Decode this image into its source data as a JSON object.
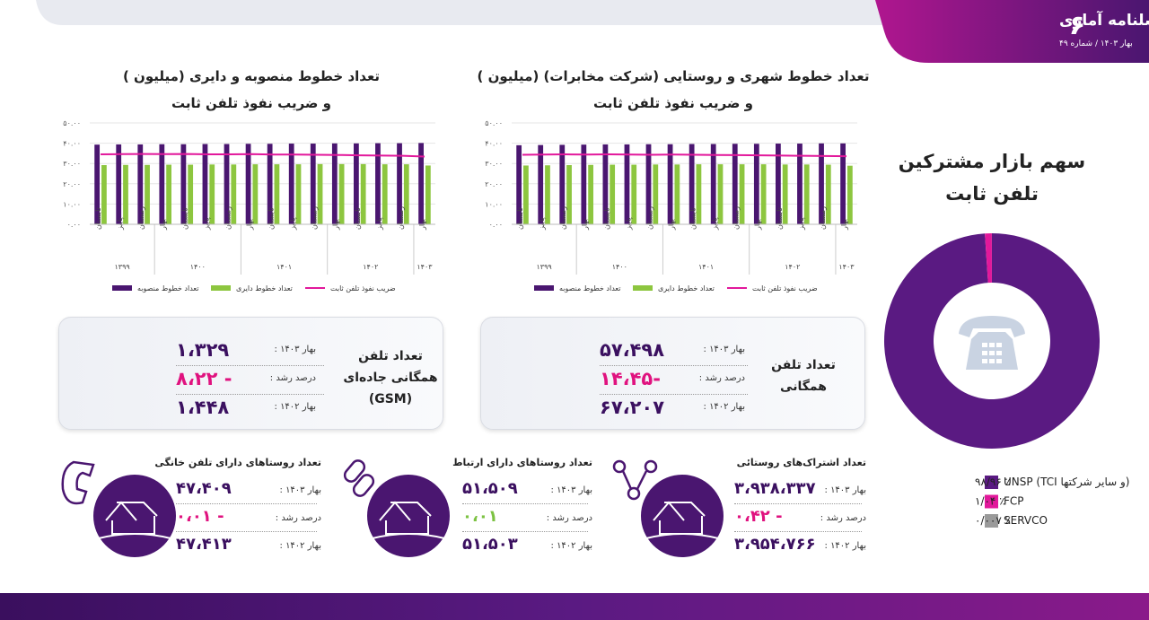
{
  "header": {
    "title": "فصلنامه آماری",
    "subtitle": "بهار ۱۴۰۳ / شماره ۴۹",
    "page_number": "۶"
  },
  "chart_data": [
    {
      "type": "bar",
      "title": "تعداد خطوط منصوبه و دایری (میلیون )",
      "subtitle": "و ضریب نفوذ تلفن ثابت",
      "categories": [
        "تابستان",
        "پاییز",
        "زمستان",
        "بهار",
        "تابستان",
        "پاییز",
        "زمستان",
        "بهار",
        "تابستان",
        "پاییز",
        "زمستان",
        "بهار",
        "تابستان",
        "پاییز",
        "زمستان",
        "بهار"
      ],
      "category_years": [
        "۱۳۹۹",
        "۱۳۹۹",
        "۱۳۹۹",
        "۱۴۰۰",
        "۱۴۰۰",
        "۱۴۰۰",
        "۱۴۰۰",
        "۱۴۰۱",
        "۱۴۰۱",
        "۱۴۰۱",
        "۱۴۰۱",
        "۱۴۰۲",
        "۱۴۰۲",
        "۱۴۰۲",
        "۱۴۰۲",
        "۱۴۰۳"
      ],
      "series": [
        {
          "name": "تعداد خطوط منصوبه",
          "type": "bar",
          "color": "#4a1670",
          "values": [
            39.3,
            39.4,
            39.4,
            39.5,
            39.5,
            39.6,
            39.6,
            39.7,
            39.7,
            39.8,
            39.8,
            39.9,
            39.9,
            40.0,
            40.0,
            40.1
          ]
        },
        {
          "name": "تعداد خطوط دایری",
          "type": "bar",
          "color": "#8dc63f",
          "values": [
            29.2,
            29.3,
            29.3,
            29.4,
            29.4,
            29.5,
            29.5,
            29.6,
            29.6,
            29.6,
            29.7,
            29.7,
            29.7,
            29.6,
            29.6,
            29.0
          ]
        },
        {
          "name": "ضریب نفوذ تلفن ثابت",
          "type": "line",
          "color": "#e2189b",
          "values": [
            34.5,
            34.6,
            34.7,
            34.6,
            34.7,
            34.5,
            34.5,
            34.6,
            34.4,
            34.4,
            34.3,
            34.2,
            34.0,
            33.9,
            33.8,
            33.4
          ]
        }
      ],
      "ylim": [
        0,
        50
      ],
      "yticks": [
        {
          "value": 0,
          "label": "۰.۰۰"
        },
        {
          "value": 10,
          "label": "۱۰.۰۰"
        },
        {
          "value": 20,
          "label": "۲۰.۰۰"
        },
        {
          "value": 30,
          "label": "۳۰.۰۰"
        },
        {
          "value": 40,
          "label": "۴۰.۰۰"
        },
        {
          "value": 50,
          "label": "۵۰.۰۰"
        }
      ],
      "grid": true
    },
    {
      "type": "bar",
      "title": "تعداد خطوط شهری و روستایی (شرکت مخابرات) (میلیون )",
      "subtitle": "و ضریب نفوذ تلفن ثابت",
      "categories": [
        "تابستان",
        "پاییز",
        "زمستان",
        "بهار",
        "تابستان",
        "پاییز",
        "زمستان",
        "بهار",
        "تابستان",
        "پاییز",
        "زمستان",
        "بهار",
        "تابستان",
        "پاییز",
        "زمستان",
        "بهار"
      ],
      "category_years": [
        "۱۳۹۹",
        "۱۳۹۹",
        "۱۳۹۹",
        "۱۴۰۰",
        "۱۴۰۰",
        "۱۴۰۰",
        "۱۴۰۰",
        "۱۴۰۱",
        "۱۴۰۱",
        "۱۴۰۱",
        "۱۴۰۱",
        "۱۴۰۲",
        "۱۴۰۲",
        "۱۴۰۲",
        "۱۴۰۲",
        "۱۴۰۳"
      ],
      "series": [
        {
          "name": "تعداد خطوط منصوبه",
          "type": "bar",
          "color": "#4a1670",
          "values": [
            39.0,
            39.1,
            39.2,
            39.3,
            39.4,
            39.4,
            39.5,
            39.5,
            39.6,
            39.6,
            39.7,
            39.7,
            39.8,
            39.8,
            39.9,
            39.9
          ]
        },
        {
          "name": "تعداد خطوط دایری",
          "type": "bar",
          "color": "#8dc63f",
          "values": [
            29.0,
            29.1,
            29.2,
            29.3,
            29.4,
            29.4,
            29.5,
            29.5,
            29.6,
            29.6,
            29.6,
            29.6,
            29.5,
            29.5,
            29.4,
            28.9
          ]
        },
        {
          "name": "ضریب نفوذ تلفن ثابت",
          "type": "line",
          "color": "#e2189b",
          "values": [
            34.3,
            34.4,
            34.5,
            34.4,
            34.5,
            34.4,
            34.3,
            34.4,
            34.3,
            34.2,
            34.1,
            34.0,
            33.9,
            33.8,
            33.7,
            33.6
          ]
        }
      ],
      "ylim": [
        0,
        50
      ],
      "yticks": [
        {
          "value": 0,
          "label": "۰.۰۰"
        },
        {
          "value": 10,
          "label": "۱۰.۰۰"
        },
        {
          "value": 20,
          "label": "۲۰.۰۰"
        },
        {
          "value": 30,
          "label": "۳۰.۰۰"
        },
        {
          "value": 40,
          "label": "۴۰.۰۰"
        },
        {
          "value": 50,
          "label": "۵۰.۰۰"
        }
      ],
      "grid": true
    },
    {
      "type": "donut",
      "title": "سهم بازار مشترکین",
      "subtitle": "تلفن ثابت",
      "categories": [
        "UNSP (TCI و سایر شرکتها)",
        "FCP",
        "SERVCO"
      ],
      "values": [
        98.96,
        1.04,
        0.007
      ],
      "value_labels": [
        "٪ ۹۸/۹۶",
        "٪ ۱/۰۴",
        "٪ ۰/۰۰۷"
      ],
      "colors": [
        "#5a1a82",
        "#e2189b",
        "#9a9a9a"
      ]
    }
  ],
  "cards": [
    {
      "title": "تعداد تلفن همگانی",
      "rows": [
        {
          "label": "بهار ۱۴۰۳ :",
          "value": "۵۷،۴۹۸"
        },
        {
          "label": "درصد رشد :",
          "value": "-۱۴،۴۵",
          "color": "#e0127f"
        },
        {
          "label": "بهار ۱۴۰۲ :",
          "value": "۶۷،۲۰۷"
        }
      ]
    },
    {
      "title": "تعداد تلفن همگانی جاده‌ای (GSM)",
      "rows": [
        {
          "label": "بهار ۱۴۰۳ :",
          "value": "۱،۳۲۹"
        },
        {
          "label": "درصد رشد :",
          "value": "- ۸،۲۲",
          "color": "#e0127f"
        },
        {
          "label": "بهار ۱۴۰۲ :",
          "value": "۱،۴۴۸"
        }
      ]
    }
  ],
  "villages": [
    {
      "title": "تعداد اشتراک‌های روستائی",
      "rows": [
        {
          "label": "بهار ۱۴۰۳ :",
          "value": "۳،۹۳۸،۳۳۷"
        },
        {
          "label": "درصد رشد :",
          "value": "- ۰،۴۲",
          "color": "#e0127f"
        },
        {
          "label": "بهار ۱۴۰۲ :",
          "value": "۳،۹۵۴،۷۶۶"
        }
      ]
    },
    {
      "title": "تعداد روستاهای دارای ارتباط",
      "rows": [
        {
          "label": "بهار ۱۴۰۳ :",
          "value": "۵۱،۵۰۹"
        },
        {
          "label": "درصد رشد :",
          "value": "۰،۰۱",
          "color": "#7cc242"
        },
        {
          "label": "بهار ۱۴۰۲ :",
          "value": "۵۱،۵۰۳"
        }
      ]
    },
    {
      "title": "تعداد روستاهای دارای تلفن خانگی",
      "rows": [
        {
          "label": "بهار ۱۴۰۳ :",
          "value": "۴۷،۴۰۹"
        },
        {
          "label": "درصد رشد :",
          "value": "- ۰،۰۱",
          "color": "#e0127f"
        },
        {
          "label": "بهار ۱۴۰۲ :",
          "value": "۴۷،۴۱۳"
        }
      ]
    }
  ]
}
